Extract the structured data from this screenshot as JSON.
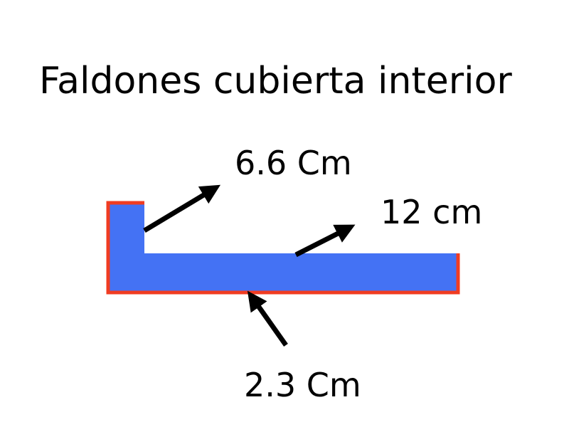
{
  "title": "Faldones cubierta interior",
  "colors": {
    "fill": "#4472f4",
    "edge": "#f03c22",
    "arrow": "#000000"
  },
  "dimensions": {
    "height": "6.6 Cm",
    "length": "12 cm",
    "thickness": "2.3 Cm"
  }
}
